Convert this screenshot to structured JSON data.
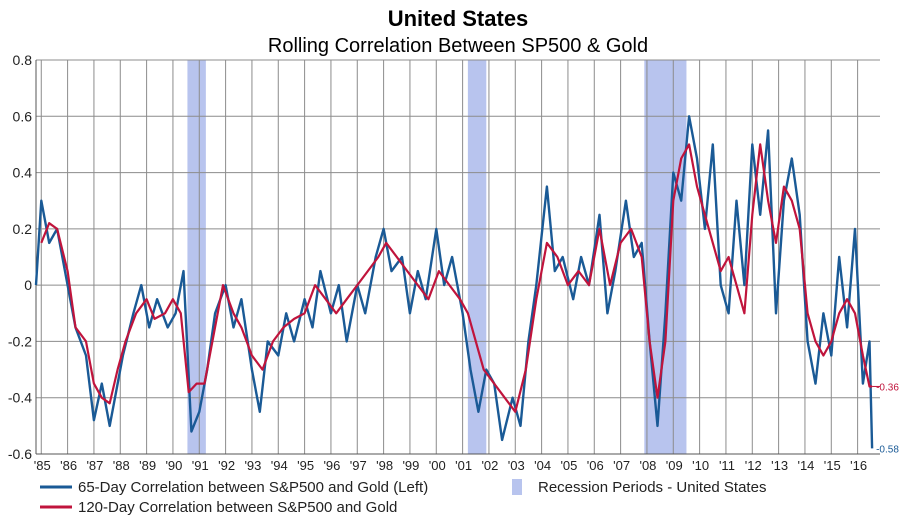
{
  "chart_data": {
    "type": "line",
    "title": "United States",
    "subtitle": "Rolling Correlation Between SP500 & Gold",
    "ylim": [
      -0.6,
      0.8
    ],
    "y_ticks": [
      "0.8",
      "0.6",
      "0.4",
      "0.2",
      "0",
      "-0.2",
      "-0.4",
      "-0.6"
    ],
    "x_range": [
      1984.8,
      2016.85
    ],
    "x_ticks": [
      {
        "year": 1985,
        "label": "'85"
      },
      {
        "year": 1986,
        "label": "'86"
      },
      {
        "year": 1987,
        "label": "'87"
      },
      {
        "year": 1988,
        "label": "'88"
      },
      {
        "year": 1989,
        "label": "'89"
      },
      {
        "year": 1990,
        "label": "'90"
      },
      {
        "year": 1991,
        "label": "'91"
      },
      {
        "year": 1992,
        "label": "'92"
      },
      {
        "year": 1993,
        "label": "'93"
      },
      {
        "year": 1994,
        "label": "'94"
      },
      {
        "year": 1995,
        "label": "'95"
      },
      {
        "year": 1996,
        "label": "'96"
      },
      {
        "year": 1997,
        "label": "'97"
      },
      {
        "year": 1998,
        "label": "'98"
      },
      {
        "year": 1999,
        "label": "'99"
      },
      {
        "year": 2000,
        "label": "'00"
      },
      {
        "year": 2001,
        "label": "'01"
      },
      {
        "year": 2002,
        "label": "'02"
      },
      {
        "year": 2003,
        "label": "'03"
      },
      {
        "year": 2004,
        "label": "'04"
      },
      {
        "year": 2005,
        "label": "'05"
      },
      {
        "year": 2006,
        "label": "'06"
      },
      {
        "year": 2007,
        "label": "'07"
      },
      {
        "year": 2008,
        "label": "'08"
      },
      {
        "year": 2009,
        "label": "'09"
      },
      {
        "year": 2010,
        "label": "'10"
      },
      {
        "year": 2011,
        "label": "'11"
      },
      {
        "year": 2012,
        "label": "'12"
      },
      {
        "year": 2013,
        "label": "'13"
      },
      {
        "year": 2014,
        "label": "'14"
      },
      {
        "year": 2015,
        "label": "'15"
      },
      {
        "year": 2016,
        "label": "'16"
      }
    ],
    "grid": true,
    "legend_position": "bottom-left",
    "recessions": [
      {
        "start": 1990.55,
        "end": 1991.25
      },
      {
        "start": 2001.2,
        "end": 2001.9
      },
      {
        "start": 2007.9,
        "end": 2009.5
      }
    ],
    "series": [
      {
        "name": "65-Day Correlation between S&P500 and Gold (Left)",
        "color": "#1a5a96",
        "end_label": "-0.58",
        "x": [
          1984.8,
          1985.0,
          1985.3,
          1985.6,
          1986.0,
          1986.3,
          1986.7,
          1987.0,
          1987.3,
          1987.6,
          1987.8,
          1988.1,
          1988.5,
          1988.8,
          1989.1,
          1989.4,
          1989.8,
          1990.1,
          1990.4,
          1990.7,
          1991.0,
          1991.3,
          1991.6,
          1992.0,
          1992.3,
          1992.6,
          1993.0,
          1993.3,
          1993.6,
          1994.0,
          1994.3,
          1994.6,
          1995.0,
          1995.3,
          1995.6,
          1996.0,
          1996.3,
          1996.6,
          1997.0,
          1997.3,
          1997.7,
          1998.0,
          1998.3,
          1998.7,
          1999.0,
          1999.3,
          1999.6,
          2000.0,
          2000.3,
          2000.6,
          2001.0,
          2001.3,
          2001.6,
          2001.9,
          2002.2,
          2002.5,
          2002.9,
          2003.2,
          2003.5,
          2003.8,
          2004.2,
          2004.5,
          2004.8,
          2005.2,
          2005.5,
          2005.8,
          2006.2,
          2006.5,
          2006.8,
          2007.2,
          2007.5,
          2007.8,
          2008.1,
          2008.4,
          2008.7,
          2009.0,
          2009.3,
          2009.6,
          2009.9,
          2010.2,
          2010.5,
          2010.8,
          2011.1,
          2011.4,
          2011.7,
          2012.0,
          2012.3,
          2012.6,
          2012.9,
          2013.2,
          2013.5,
          2013.8,
          2014.1,
          2014.4,
          2014.7,
          2015.0,
          2015.3,
          2015.6,
          2015.9,
          2016.2,
          2016.45,
          2016.55
        ],
        "values": [
          0.0,
          0.3,
          0.15,
          0.2,
          0.0,
          -0.15,
          -0.25,
          -0.48,
          -0.35,
          -0.5,
          -0.4,
          -0.25,
          -0.1,
          0.0,
          -0.15,
          -0.05,
          -0.15,
          -0.1,
          0.05,
          -0.52,
          -0.45,
          -0.3,
          -0.1,
          0.0,
          -0.15,
          -0.05,
          -0.3,
          -0.45,
          -0.2,
          -0.25,
          -0.1,
          -0.2,
          -0.05,
          -0.15,
          0.05,
          -0.1,
          0.0,
          -0.2,
          0.0,
          -0.1,
          0.1,
          0.2,
          0.05,
          0.1,
          -0.1,
          0.05,
          -0.05,
          0.2,
          0.0,
          0.1,
          -0.1,
          -0.3,
          -0.45,
          -0.3,
          -0.35,
          -0.55,
          -0.4,
          -0.5,
          -0.2,
          0.0,
          0.35,
          0.05,
          0.1,
          -0.05,
          0.1,
          0.0,
          0.25,
          -0.1,
          0.05,
          0.3,
          0.1,
          0.15,
          -0.2,
          -0.5,
          -0.1,
          0.4,
          0.3,
          0.6,
          0.45,
          0.2,
          0.5,
          0.0,
          -0.1,
          0.3,
          0.0,
          0.5,
          0.25,
          0.55,
          -0.1,
          0.3,
          0.45,
          0.25,
          -0.2,
          -0.35,
          -0.1,
          -0.25,
          0.1,
          -0.15,
          0.2,
          -0.35,
          -0.2,
          -0.58
        ]
      },
      {
        "name": "120-Day Correlation between S&P500 and Gold",
        "color": "#c0143c",
        "end_label": "-0.36",
        "x": [
          1985.0,
          1985.3,
          1985.6,
          1986.0,
          1986.3,
          1986.7,
          1987.0,
          1987.3,
          1987.6,
          1987.9,
          1988.2,
          1988.6,
          1989.0,
          1989.3,
          1989.7,
          1990.0,
          1990.3,
          1990.6,
          1990.9,
          1991.2,
          1991.5,
          1991.9,
          1992.3,
          1992.6,
          1993.0,
          1993.4,
          1993.8,
          1994.2,
          1994.6,
          1995.0,
          1995.4,
          1995.8,
          1996.2,
          1996.6,
          1997.0,
          1997.4,
          1997.8,
          1998.1,
          1998.5,
          1998.9,
          1999.3,
          1999.7,
          2000.1,
          2000.5,
          2000.9,
          2001.2,
          2001.5,
          2001.8,
          2002.2,
          2002.6,
          2003.0,
          2003.4,
          2003.8,
          2004.2,
          2004.6,
          2005.0,
          2005.4,
          2005.8,
          2006.2,
          2006.6,
          2007.0,
          2007.4,
          2007.8,
          2008.1,
          2008.4,
          2008.7,
          2009.0,
          2009.3,
          2009.6,
          2009.9,
          2010.2,
          2010.5,
          2010.8,
          2011.1,
          2011.4,
          2011.7,
          2012.0,
          2012.3,
          2012.6,
          2012.9,
          2013.2,
          2013.5,
          2013.8,
          2014.1,
          2014.4,
          2014.7,
          2015.0,
          2015.3,
          2015.6,
          2015.9,
          2016.2,
          2016.45,
          2016.55
        ],
        "values": [
          0.15,
          0.22,
          0.2,
          0.05,
          -0.15,
          -0.2,
          -0.35,
          -0.4,
          -0.42,
          -0.3,
          -0.2,
          -0.1,
          -0.05,
          -0.12,
          -0.1,
          -0.05,
          -0.1,
          -0.38,
          -0.35,
          -0.35,
          -0.2,
          0.0,
          -0.1,
          -0.15,
          -0.25,
          -0.3,
          -0.2,
          -0.15,
          -0.12,
          -0.1,
          0.0,
          -0.05,
          -0.1,
          -0.05,
          0.0,
          0.05,
          0.1,
          0.15,
          0.1,
          0.05,
          0.0,
          -0.05,
          0.05,
          0.0,
          -0.05,
          -0.1,
          -0.2,
          -0.3,
          -0.35,
          -0.4,
          -0.45,
          -0.3,
          -0.05,
          0.15,
          0.1,
          0.0,
          0.05,
          0.0,
          0.2,
          0.0,
          0.15,
          0.2,
          0.1,
          -0.2,
          -0.4,
          -0.2,
          0.3,
          0.45,
          0.5,
          0.35,
          0.25,
          0.15,
          0.05,
          0.1,
          0.0,
          -0.1,
          0.25,
          0.5,
          0.3,
          0.15,
          0.35,
          0.3,
          0.2,
          -0.1,
          -0.2,
          -0.25,
          -0.2,
          -0.1,
          -0.05,
          -0.1,
          -0.25,
          -0.36,
          -0.36
        ]
      }
    ],
    "recession_legend": "Recession Periods - United States"
  }
}
